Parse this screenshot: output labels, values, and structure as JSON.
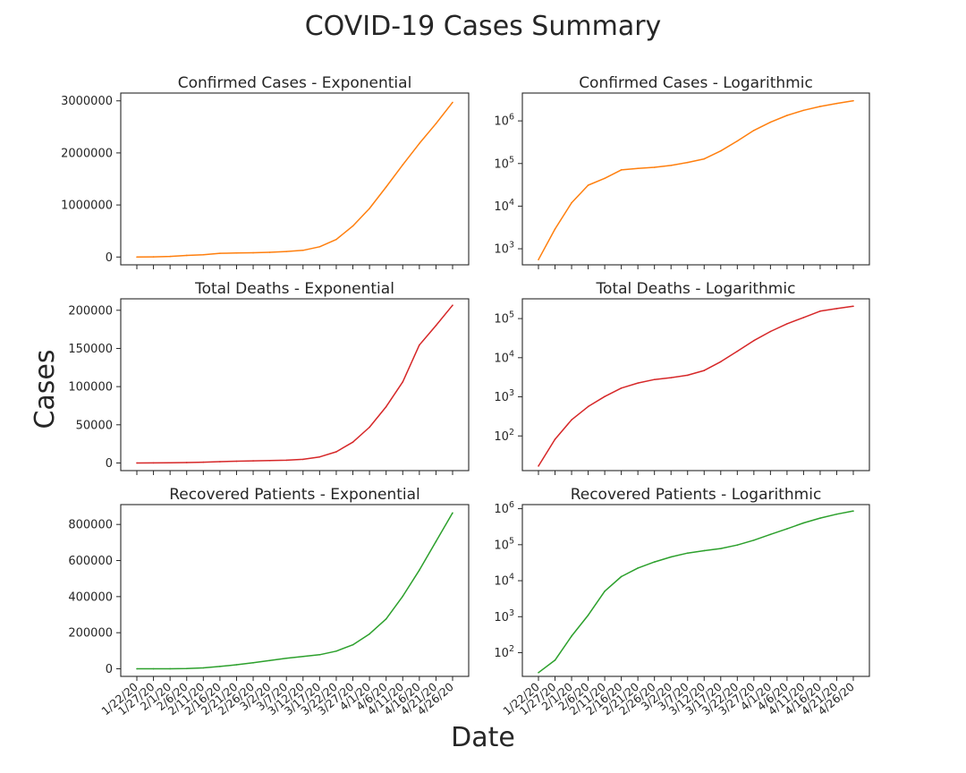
{
  "figure": {
    "suptitle": "COVID-19 Cases Summary",
    "xlabel": "Date",
    "ylabel": "Cases"
  },
  "x_tick_labels": [
    "1/22/20",
    "1/27/20",
    "2/1/20",
    "2/6/20",
    "2/11/20",
    "2/16/20",
    "2/21/20",
    "2/26/20",
    "3/2/20",
    "3/7/20",
    "3/12/20",
    "3/17/20",
    "3/22/20",
    "3/27/20",
    "4/1/20",
    "4/6/20",
    "4/11/20",
    "4/16/20",
    "4/21/20",
    "4/26/20"
  ],
  "chart_data": [
    {
      "type": "line",
      "title": "Confirmed Cases - Exponential",
      "yscale": "linear",
      "ylim": [
        -150000,
        3150000
      ],
      "yticks": [
        0,
        1000000,
        2000000,
        3000000
      ],
      "ytick_labels": [
        "0",
        "1000000",
        "2000000",
        "3000000"
      ],
      "color": "#ff7f0e",
      "x": [
        "1/22/20",
        "1/27/20",
        "2/1/20",
        "2/6/20",
        "2/11/20",
        "2/16/20",
        "2/21/20",
        "2/26/20",
        "3/2/20",
        "3/7/20",
        "3/12/20",
        "3/17/20",
        "3/22/20",
        "3/27/20",
        "4/1/20",
        "4/6/20",
        "4/11/20",
        "4/16/20",
        "4/21/20",
        "4/26/20"
      ],
      "values": [
        555,
        2900,
        12000,
        31000,
        45000,
        71000,
        77000,
        81400,
        90300,
        105800,
        128300,
        197100,
        336900,
        596600,
        932600,
        1345000,
        1771000,
        2181000,
        2563000,
        2971000
      ]
    },
    {
      "type": "line",
      "title": "Confirmed Cases - Logarithmic",
      "yscale": "log",
      "ylim": [
        420,
        4500000
      ],
      "yticks": [
        1000,
        10000,
        100000,
        1000000
      ],
      "ytick_labels": [
        "10^3",
        "10^4",
        "10^5",
        "10^6"
      ],
      "color": "#ff7f0e",
      "x": [
        "1/22/20",
        "1/27/20",
        "2/1/20",
        "2/6/20",
        "2/11/20",
        "2/16/20",
        "2/21/20",
        "2/26/20",
        "3/2/20",
        "3/7/20",
        "3/12/20",
        "3/17/20",
        "3/22/20",
        "3/27/20",
        "4/1/20",
        "4/6/20",
        "4/11/20",
        "4/16/20",
        "4/21/20",
        "4/26/20"
      ],
      "values": [
        555,
        2900,
        12000,
        31000,
        45000,
        71000,
        77000,
        81400,
        90300,
        105800,
        128300,
        197100,
        336900,
        596600,
        932600,
        1345000,
        1771000,
        2181000,
        2563000,
        2971000
      ]
    },
    {
      "type": "line",
      "title": "Total Deaths - Exponential",
      "yscale": "linear",
      "ylim": [
        -10000,
        215000
      ],
      "yticks": [
        0,
        50000,
        100000,
        150000,
        200000
      ],
      "ytick_labels": [
        "0",
        "50000",
        "100000",
        "150000",
        "200000"
      ],
      "color": "#d62728",
      "x": [
        "1/22/20",
        "1/27/20",
        "2/1/20",
        "2/6/20",
        "2/11/20",
        "2/16/20",
        "2/21/20",
        "2/26/20",
        "3/2/20",
        "3/7/20",
        "3/12/20",
        "3/17/20",
        "3/22/20",
        "3/27/20",
        "4/1/20",
        "4/6/20",
        "4/11/20",
        "4/16/20",
        "4/21/20",
        "4/26/20"
      ],
      "values": [
        17,
        82,
        259,
        565,
        1018,
        1669,
        2251,
        2770,
        3085,
        3558,
        4720,
        7905,
        14600,
        27300,
        46800,
        73700,
        106300,
        154400,
        180000,
        206600
      ]
    },
    {
      "type": "line",
      "title": "Total Deaths - Logarithmic",
      "yscale": "log",
      "ylim": [
        13,
        320000
      ],
      "yticks": [
        100,
        1000,
        10000,
        100000
      ],
      "ytick_labels": [
        "10^2",
        "10^3",
        "10^4",
        "10^5"
      ],
      "color": "#d62728",
      "x": [
        "1/22/20",
        "1/27/20",
        "2/1/20",
        "2/6/20",
        "2/11/20",
        "2/16/20",
        "2/21/20",
        "2/26/20",
        "3/2/20",
        "3/7/20",
        "3/12/20",
        "3/17/20",
        "3/22/20",
        "3/27/20",
        "4/1/20",
        "4/6/20",
        "4/11/20",
        "4/16/20",
        "4/21/20",
        "4/26/20"
      ],
      "values": [
        17,
        82,
        259,
        565,
        1018,
        1669,
        2251,
        2770,
        3085,
        3558,
        4720,
        7905,
        14600,
        27300,
        46800,
        73700,
        106300,
        154400,
        180000,
        206600
      ]
    },
    {
      "type": "line",
      "title": "Recovered Patients - Exponential",
      "yscale": "linear",
      "ylim": [
        -42000,
        910000
      ],
      "yticks": [
        0,
        200000,
        400000,
        600000,
        800000
      ],
      "ytick_labels": [
        "0",
        "200000",
        "400000",
        "600000",
        "800000"
      ],
      "color": "#2ca02c",
      "x": [
        "1/22/20",
        "1/27/20",
        "2/1/20",
        "2/6/20",
        "2/11/20",
        "2/16/20",
        "2/21/20",
        "2/26/20",
        "3/2/20",
        "3/7/20",
        "3/12/20",
        "3/17/20",
        "3/22/20",
        "3/27/20",
        "4/1/20",
        "4/6/20",
        "4/11/20",
        "4/16/20",
        "4/21/20",
        "4/26/20"
      ],
      "values": [
        28,
        62,
        290,
        1100,
        5100,
        13000,
        22500,
        33200,
        45600,
        58400,
        68300,
        78100,
        97900,
        133000,
        193200,
        276500,
        402100,
        546500,
        705000,
        864000
      ]
    },
    {
      "type": "line",
      "title": "Recovered Patients - Logarithmic",
      "yscale": "log",
      "ylim": [
        22,
        1300000
      ],
      "yticks": [
        100,
        1000,
        10000,
        100000,
        1000000
      ],
      "ytick_labels": [
        "10^2",
        "10^3",
        "10^4",
        "10^5",
        "10^6"
      ],
      "color": "#2ca02c",
      "x": [
        "1/22/20",
        "1/27/20",
        "2/1/20",
        "2/6/20",
        "2/11/20",
        "2/16/20",
        "2/21/20",
        "2/26/20",
        "3/2/20",
        "3/7/20",
        "3/12/20",
        "3/17/20",
        "3/22/20",
        "3/27/20",
        "4/1/20",
        "4/6/20",
        "4/11/20",
        "4/16/20",
        "4/21/20",
        "4/26/20"
      ],
      "values": [
        28,
        62,
        290,
        1100,
        5100,
        13000,
        22500,
        33200,
        45600,
        58400,
        68300,
        78100,
        97900,
        133000,
        193200,
        276500,
        402100,
        546500,
        705000,
        864000
      ]
    }
  ]
}
